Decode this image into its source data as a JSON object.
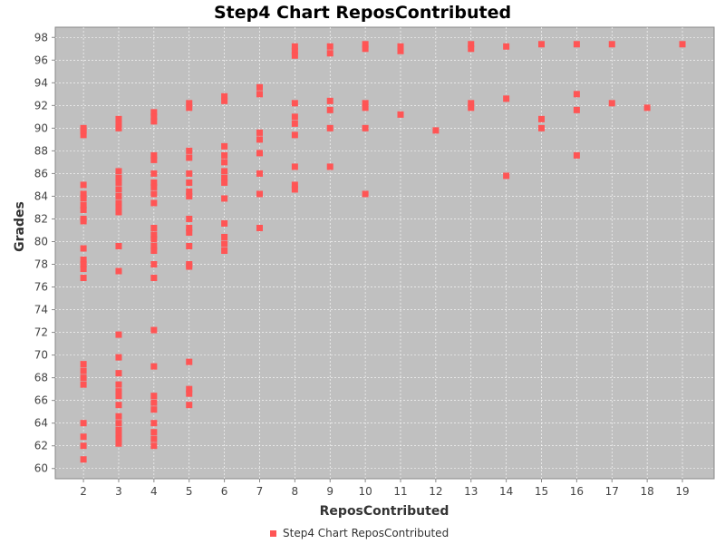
{
  "chart_data": {
    "type": "scatter",
    "title": "Step4 Chart ReposContributed",
    "xlabel": "ReposContributed",
    "ylabel": "Grades",
    "xlim": [
      1.2,
      19.9
    ],
    "ylim": [
      59.1,
      98.9
    ],
    "x_ticks": [
      2,
      3,
      4,
      5,
      6,
      7,
      8,
      9,
      10,
      11,
      12,
      13,
      14,
      15,
      16,
      17,
      18,
      19
    ],
    "y_ticks": [
      60,
      62,
      64,
      66,
      68,
      70,
      72,
      74,
      76,
      78,
      80,
      82,
      84,
      86,
      88,
      90,
      92,
      94,
      96,
      98
    ],
    "grid": true,
    "legend_position": "bottom-center",
    "colors": {
      "series": "#ff5555",
      "plot_bg": "#c0c0c0",
      "grid": "#ffffff"
    },
    "series": [
      {
        "name": "Step4 Chart ReposContributed",
        "points": [
          [
            2,
            89.4
          ],
          [
            2,
            89.8
          ],
          [
            2,
            90.0
          ],
          [
            2,
            85.0
          ],
          [
            2,
            84.2
          ],
          [
            2,
            83.8
          ],
          [
            2,
            83.2
          ],
          [
            2,
            82.8
          ],
          [
            2,
            82.0
          ],
          [
            2,
            81.8
          ],
          [
            2,
            79.4
          ],
          [
            2,
            78.4
          ],
          [
            2,
            78.0
          ],
          [
            2,
            77.6
          ],
          [
            2,
            76.8
          ],
          [
            2,
            69.2
          ],
          [
            2,
            68.6
          ],
          [
            2,
            68.0
          ],
          [
            2,
            67.4
          ],
          [
            2,
            64.0
          ],
          [
            2,
            62.8
          ],
          [
            2,
            62.0
          ],
          [
            2,
            60.8
          ],
          [
            3,
            90.8
          ],
          [
            3,
            90.4
          ],
          [
            3,
            90.0
          ],
          [
            3,
            86.2
          ],
          [
            3,
            85.6
          ],
          [
            3,
            85.2
          ],
          [
            3,
            84.6
          ],
          [
            3,
            84.0
          ],
          [
            3,
            83.4
          ],
          [
            3,
            83.0
          ],
          [
            3,
            82.6
          ],
          [
            3,
            79.6
          ],
          [
            3,
            77.4
          ],
          [
            3,
            71.8
          ],
          [
            3,
            69.8
          ],
          [
            3,
            68.4
          ],
          [
            3,
            67.4
          ],
          [
            3,
            66.8
          ],
          [
            3,
            66.4
          ],
          [
            3,
            65.6
          ],
          [
            3,
            64.6
          ],
          [
            3,
            64.0
          ],
          [
            3,
            63.4
          ],
          [
            3,
            63.0
          ],
          [
            3,
            62.6
          ],
          [
            3,
            62.2
          ],
          [
            4,
            91.4
          ],
          [
            4,
            91.0
          ],
          [
            4,
            90.6
          ],
          [
            4,
            87.6
          ],
          [
            4,
            87.2
          ],
          [
            4,
            86.0
          ],
          [
            4,
            85.2
          ],
          [
            4,
            84.8
          ],
          [
            4,
            84.2
          ],
          [
            4,
            83.4
          ],
          [
            4,
            81.2
          ],
          [
            4,
            80.6
          ],
          [
            4,
            80.2
          ],
          [
            4,
            79.6
          ],
          [
            4,
            79.2
          ],
          [
            4,
            78.0
          ],
          [
            4,
            76.8
          ],
          [
            4,
            72.2
          ],
          [
            4,
            69.0
          ],
          [
            4,
            66.4
          ],
          [
            4,
            65.8
          ],
          [
            4,
            65.2
          ],
          [
            4,
            64.0
          ],
          [
            4,
            63.2
          ],
          [
            4,
            62.6
          ],
          [
            4,
            62.0
          ],
          [
            5,
            92.2
          ],
          [
            5,
            91.8
          ],
          [
            5,
            88.0
          ],
          [
            5,
            87.4
          ],
          [
            5,
            86.0
          ],
          [
            5,
            85.2
          ],
          [
            5,
            84.4
          ],
          [
            5,
            84.0
          ],
          [
            5,
            82.0
          ],
          [
            5,
            81.2
          ],
          [
            5,
            80.8
          ],
          [
            5,
            79.6
          ],
          [
            5,
            78.0
          ],
          [
            5,
            77.8
          ],
          [
            5,
            69.4
          ],
          [
            5,
            67.0
          ],
          [
            5,
            66.6
          ],
          [
            5,
            65.6
          ],
          [
            6,
            92.8
          ],
          [
            6,
            92.4
          ],
          [
            6,
            88.4
          ],
          [
            6,
            87.6
          ],
          [
            6,
            87.0
          ],
          [
            6,
            86.2
          ],
          [
            6,
            85.6
          ],
          [
            6,
            85.2
          ],
          [
            6,
            83.8
          ],
          [
            6,
            81.6
          ],
          [
            6,
            80.4
          ],
          [
            6,
            79.8
          ],
          [
            6,
            79.2
          ],
          [
            7,
            93.6
          ],
          [
            7,
            93.0
          ],
          [
            7,
            89.6
          ],
          [
            7,
            89.0
          ],
          [
            7,
            87.8
          ],
          [
            7,
            86.0
          ],
          [
            7,
            84.2
          ],
          [
            7,
            81.2
          ],
          [
            8,
            97.2
          ],
          [
            8,
            96.8
          ],
          [
            8,
            96.4
          ],
          [
            8,
            92.2
          ],
          [
            8,
            91.0
          ],
          [
            8,
            90.4
          ],
          [
            8,
            89.4
          ],
          [
            8,
            86.6
          ],
          [
            8,
            85.0
          ],
          [
            8,
            84.6
          ],
          [
            9,
            97.2
          ],
          [
            9,
            96.6
          ],
          [
            9,
            92.4
          ],
          [
            9,
            91.6
          ],
          [
            9,
            90.0
          ],
          [
            9,
            86.6
          ],
          [
            10,
            97.4
          ],
          [
            10,
            97.0
          ],
          [
            10,
            92.2
          ],
          [
            10,
            91.8
          ],
          [
            10,
            90.0
          ],
          [
            10,
            84.2
          ],
          [
            11,
            97.2
          ],
          [
            11,
            96.8
          ],
          [
            11,
            91.2
          ],
          [
            12,
            89.8
          ],
          [
            13,
            97.4
          ],
          [
            13,
            97.0
          ],
          [
            13,
            92.2
          ],
          [
            13,
            91.8
          ],
          [
            14,
            97.2
          ],
          [
            14,
            92.6
          ],
          [
            14,
            85.8
          ],
          [
            15,
            97.4
          ],
          [
            15,
            90.8
          ],
          [
            15,
            90.0
          ],
          [
            16,
            97.4
          ],
          [
            16,
            93.0
          ],
          [
            16,
            91.6
          ],
          [
            16,
            87.6
          ],
          [
            17,
            97.4
          ],
          [
            17,
            92.2
          ],
          [
            18,
            91.8
          ],
          [
            19,
            97.4
          ]
        ]
      }
    ]
  }
}
